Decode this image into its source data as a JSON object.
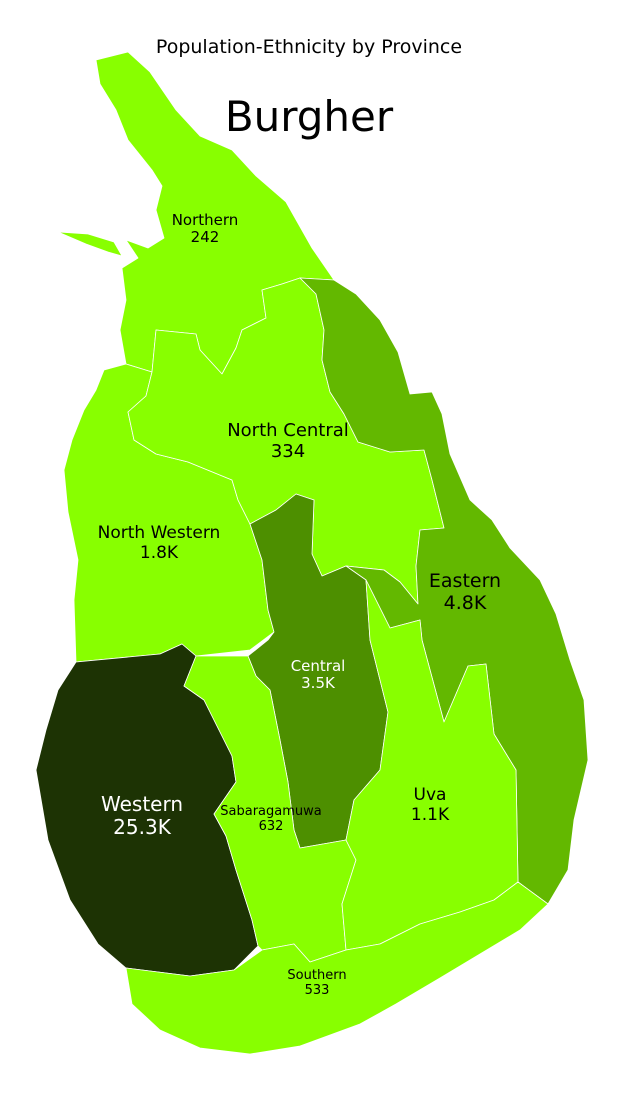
{
  "title": "Population-Ethnicity by Province",
  "subtitle": "Burgher",
  "provinces": [
    {
      "key": "northern",
      "name": "Northern",
      "value": "242",
      "value_num": 242,
      "fill": "#88ff00",
      "text_color": "#000000"
    },
    {
      "key": "north_central",
      "name": "North Central",
      "value": "334",
      "value_num": 334,
      "fill": "#88ff00",
      "text_color": "#000000"
    },
    {
      "key": "north_western",
      "name": "North Western",
      "value": "1.8K",
      "value_num": 1800,
      "fill": "#88ff00",
      "text_color": "#000000"
    },
    {
      "key": "eastern",
      "name": "Eastern",
      "value": "4.8K",
      "value_num": 4800,
      "fill": "#63b800",
      "text_color": "#000000"
    },
    {
      "key": "central",
      "name": "Central",
      "value": "3.5K",
      "value_num": 3500,
      "fill": "#4d8f00",
      "text_color": "#ffffff"
    },
    {
      "key": "western",
      "name": "Western",
      "value": "25.3K",
      "value_num": 25300,
      "fill": "#1d3304",
      "text_color": "#ffffff"
    },
    {
      "key": "sabaragamuwa",
      "name": "Sabaragamuwa",
      "value": "632",
      "value_num": 632,
      "fill": "#88ff00",
      "text_color": "#000000"
    },
    {
      "key": "uva",
      "name": "Uva",
      "value": "1.1K",
      "value_num": 1100,
      "fill": "#88ff00",
      "text_color": "#000000"
    },
    {
      "key": "southern",
      "name": "Southern",
      "value": "533",
      "value_num": 533,
      "fill": "#88ff00",
      "text_color": "#000000"
    }
  ]
}
